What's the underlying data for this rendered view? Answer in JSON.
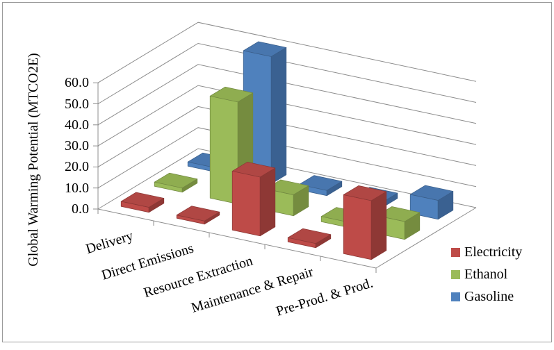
{
  "chart_data": {
    "type": "bar",
    "projection": "3d-column",
    "title": "",
    "xlabel": "",
    "ylabel": "Global Warming Potential (MTCO2E)",
    "categories": [
      "Delivery",
      "Direct Emissions",
      "Resource Extraction",
      "Maintenance & Repair",
      "Pre-Prod. & Prod."
    ],
    "series": [
      {
        "name": "Electricity",
        "color": "#BE4B48",
        "top_color": "#B04744",
        "side_color": "#8E3835",
        "values": [
          2.4,
          1.5,
          28.0,
          2.0,
          28.0
        ]
      },
      {
        "name": "Ethanol",
        "color": "#9BBB59",
        "top_color": "#8FAD50",
        "side_color": "#758C3F",
        "values": [
          2.0,
          48.5,
          10.0,
          2.5,
          8.5
        ]
      },
      {
        "name": "Gasoline",
        "color": "#4F81BD",
        "top_color": "#4876AE",
        "side_color": "#3A6191",
        "values": [
          2.0,
          60.5,
          2.5,
          2.5,
          9.0
        ]
      }
    ],
    "y_ticks": [
      "0.0",
      "10.0",
      "20.0",
      "30.0",
      "40.0",
      "50.0",
      "60.0"
    ],
    "ylim": [
      0,
      60
    ],
    "y_tick_step": 10,
    "grid": true,
    "legend_position": "bottom-right"
  },
  "colors": {
    "background": "#FFFFFF",
    "frame_border": "#9A9A9A",
    "gridline": "#8C8C8C",
    "axis": "#8C8C8C",
    "text": "#000000"
  }
}
